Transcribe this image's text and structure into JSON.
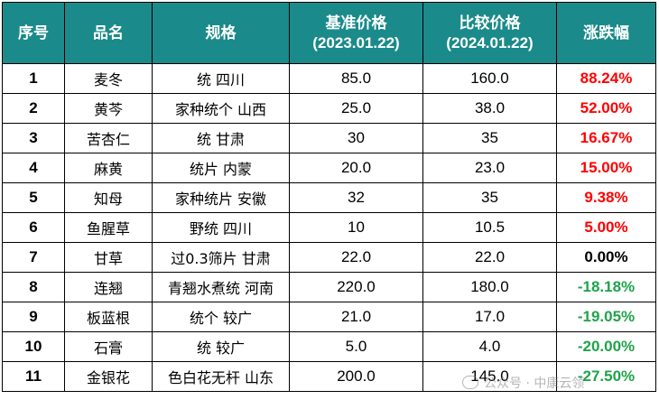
{
  "table": {
    "headers": {
      "index": "序号",
      "name": "品名",
      "spec": "规格",
      "base_price_title": "基准价格",
      "base_price_date": "(2023.01.22)",
      "compare_price_title": "比较价格",
      "compare_price_date": "(2024.01.22)",
      "change": "涨跌幅"
    },
    "rows": [
      {
        "index": "1",
        "name": "麦冬",
        "spec": "统 四川",
        "base": "85.0",
        "compare": "160.0",
        "change": "88.24%",
        "trend": "up"
      },
      {
        "index": "2",
        "name": "黄芩",
        "spec": "家种统个 山西",
        "base": "25.0",
        "compare": "38.0",
        "change": "52.00%",
        "trend": "up"
      },
      {
        "index": "3",
        "name": "苦杏仁",
        "spec": "统 甘肃",
        "base": "30",
        "compare": "35",
        "change": "16.67%",
        "trend": "up"
      },
      {
        "index": "4",
        "name": "麻黄",
        "spec": "统片 内蒙",
        "base": "20.0",
        "compare": "23.0",
        "change": "15.00%",
        "trend": "up"
      },
      {
        "index": "5",
        "name": "知母",
        "spec": "家种统片 安徽",
        "base": "32",
        "compare": "35",
        "change": "9.38%",
        "trend": "up"
      },
      {
        "index": "6",
        "name": "鱼腥草",
        "spec": "野统 四川",
        "base": "10",
        "compare": "10.5",
        "change": "5.00%",
        "trend": "up"
      },
      {
        "index": "7",
        "name": "甘草",
        "spec": "过0.3筛片 甘肃",
        "base": "22.0",
        "compare": "22.0",
        "change": "0.00%",
        "trend": "flat"
      },
      {
        "index": "8",
        "name": "连翘",
        "spec": "青翘水煮统 河南",
        "base": "220.0",
        "compare": "180.0",
        "change": "-18.18%",
        "trend": "down"
      },
      {
        "index": "9",
        "name": "板蓝根",
        "spec": "统个 较广",
        "base": "21.0",
        "compare": "17.0",
        "change": "-19.05%",
        "trend": "down"
      },
      {
        "index": "10",
        "name": "石膏",
        "spec": "统 较广",
        "base": "5.0",
        "compare": "4.0",
        "change": "-20.00%",
        "trend": "down"
      },
      {
        "index": "11",
        "name": "金银花",
        "spec": "色白花无杆 山东",
        "base": "200.0",
        "compare": "145.0",
        "change": "-27.50%",
        "trend": "down"
      }
    ]
  },
  "watermark": {
    "text": "公众号 · 中康云领"
  },
  "colors": {
    "header_bg": "#1b8a8a",
    "header_text": "#ffffff",
    "up": "#ff0000",
    "down": "#1fa34a",
    "flat": "#000000"
  }
}
